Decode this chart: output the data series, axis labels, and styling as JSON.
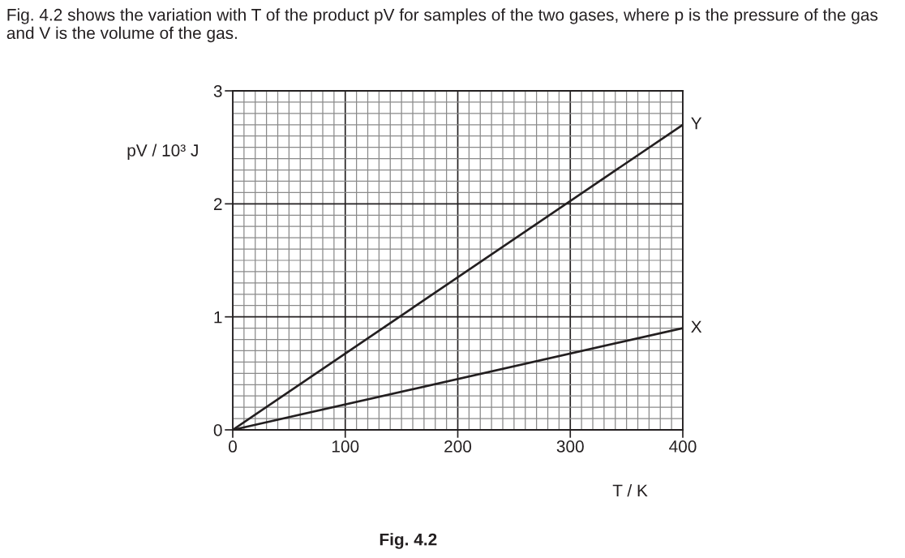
{
  "chart_data": {
    "type": "line",
    "title": "Fig. 4.2 shows the variation with T of the product pV for samples of the two gases, where p is the pressure of the gas and V is the volume of the gas.",
    "xlabel": "T / K",
    "ylabel": "pV / 10³ J",
    "annotations": [
      "Fig. 4.2"
    ],
    "x": [
      0,
      400
    ],
    "series": [
      {
        "name": "Y",
        "color": "#231f20",
        "values": [
          0,
          2.7
        ]
      },
      {
        "name": "X",
        "color": "#231f20",
        "values": [
          0,
          0.9
        ]
      }
    ],
    "xlim": [
      0,
      400
    ],
    "ylim": [
      0,
      3
    ],
    "xticks": [
      0,
      {
        "value": 10,
        "label": null
      },
      {
        "value": 20,
        "label": null
      },
      {
        "value": 30,
        "label": null
      },
      {
        "value": 40,
        "label": null
      },
      {
        "value": 50,
        "label": null
      },
      {
        "value": 60,
        "label": null
      },
      {
        "value": 70,
        "label": null
      },
      {
        "value": 80,
        "label": null
      },
      {
        "value": 90,
        "label": null
      },
      100,
      {
        "value": 110,
        "label": null
      },
      {
        "value": 120,
        "label": null
      },
      {
        "value": 130,
        "label": null
      },
      {
        "value": 140,
        "label": null
      },
      {
        "value": 150,
        "label": null
      },
      {
        "value": 160,
        "label": null
      },
      {
        "value": 170,
        "label": null
      },
      {
        "value": 180,
        "label": null
      },
      {
        "value": 190,
        "label": null
      },
      200,
      {
        "value": 210,
        "label": null
      },
      {
        "value": 220,
        "label": null
      },
      {
        "value": 230,
        "label": null
      },
      {
        "value": 240,
        "label": null
      },
      {
        "value": 250,
        "label": null
      },
      {
        "value": 260,
        "label": null
      },
      {
        "value": 270,
        "label": null
      },
      {
        "value": 280,
        "label": null
      },
      {
        "value": 290,
        "label": null
      },
      300,
      {
        "value": 310,
        "label": null
      },
      {
        "value": 320,
        "label": null
      },
      {
        "value": 330,
        "label": null
      },
      {
        "value": 340,
        "label": null
      },
      {
        "value": 350,
        "label": null
      },
      {
        "value": 360,
        "label": null
      },
      {
        "value": 370,
        "label": null
      },
      {
        "value": 380,
        "label": null
      },
      {
        "value": 390,
        "label": null
      },
      400
    ],
    "yticks": [
      0,
      {
        "value": 0.1,
        "label": null
      },
      {
        "value": 0.2,
        "label": null
      },
      {
        "value": 0.3,
        "label": null
      },
      {
        "value": 0.4,
        "label": null
      },
      {
        "value": 0.5,
        "label": null
      },
      {
        "value": 0.6,
        "label": null
      },
      {
        "value": 0.7,
        "label": null
      },
      {
        "value": 0.8,
        "label": null
      },
      {
        "value": 0.9,
        "label": null
      },
      1,
      {
        "value": 1.1,
        "label": null
      },
      {
        "value": 1.2,
        "label": null
      },
      {
        "value": 1.3,
        "label": null
      },
      {
        "value": 1.4,
        "label": null
      },
      {
        "value": 1.5,
        "label": null
      },
      {
        "value": 1.6,
        "label": null
      },
      {
        "value": 1.7,
        "label": null
      },
      {
        "value": 1.8,
        "label": null
      },
      {
        "value": 1.9,
        "label": null
      },
      2,
      {
        "value": 2.1,
        "label": null
      },
      {
        "value": 2.2,
        "label": null
      },
      {
        "value": 2.3,
        "label": null
      },
      {
        "value": 2.4,
        "label": null
      },
      {
        "value": 2.5,
        "label": null
      },
      {
        "value": 2.6,
        "label": null
      },
      {
        "value": 2.7,
        "label": null
      },
      {
        "value": 2.8,
        "label": null
      },
      {
        "value": 2.9,
        "label": null
      },
      3
    ],
    "grid": true,
    "marker": "none",
    "line_style": "solid"
  }
}
